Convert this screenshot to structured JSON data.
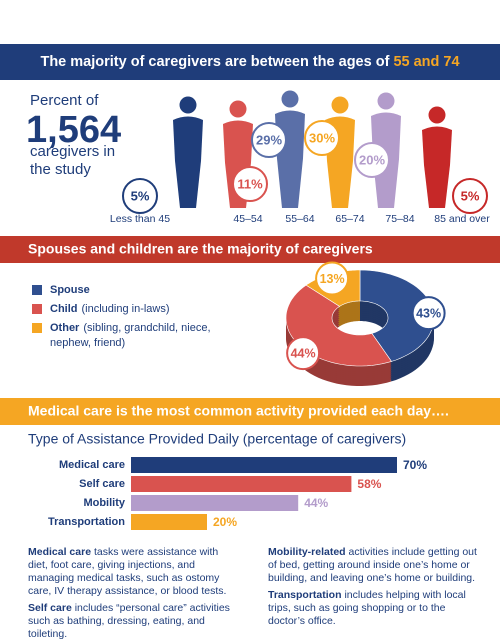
{
  "age_section": {
    "title_prefix": "The majority of caregivers are between the ages of",
    "title_highlight": "55 and 74",
    "intro_top": "Percent of",
    "intro_count": "1,564",
    "intro_bottom": "caregivers in the study"
  },
  "relationship_section": {
    "title": "Spouses and children are the majority of caregivers"
  },
  "activity_section": {
    "title": "Medical care is the most common activity provided each day….",
    "notes": [
      {
        "lead": "Medical care",
        "text": "tasks were assistance with diet, foot care, giving injections, and managing medical tasks, such as ostomy care, IV therapy assistance, or blood tests."
      },
      {
        "lead": "Self care",
        "text": "includes “personal care” activities such as bathing, dressing, eating, and toileting."
      },
      {
        "lead": "Mobility-related",
        "text": "activities include getting out of bed, getting around inside one’s home or building, and leaving one’s home or building."
      },
      {
        "lead": "Transportation",
        "text": "includes helping with local trips, such as going shopping or to the doctor’s office."
      }
    ]
  },
  "chart_data": [
    {
      "type": "pictogram",
      "categories": [
        "Less than 45",
        "45–54",
        "55–64",
        "65–74",
        "75–84",
        "85 and over"
      ],
      "values": [
        5,
        11,
        29,
        30,
        20,
        5
      ],
      "value_labels": [
        "5%",
        "11%",
        "29%",
        "30%",
        "20%",
        "5%"
      ],
      "colors": [
        "#1f3d7a",
        "#d9534f",
        "#5a6fa8",
        "#f5a623",
        "#b39ccb",
        "#c62828"
      ]
    },
    {
      "type": "pie",
      "donut": true,
      "categories": [
        "Spouse",
        "Child",
        "Other"
      ],
      "legend_notes": [
        null,
        "(including in-laws)",
        "(sibling, grandchild, niece, nephew, friend)"
      ],
      "values": [
        43,
        44,
        13
      ],
      "value_labels": [
        "43%",
        "44%",
        "13%"
      ],
      "colors": [
        "#2f4f8f",
        "#d9534f",
        "#f5a623"
      ]
    },
    {
      "type": "bar",
      "orientation": "horizontal",
      "title": "Type of Assistance Provided Daily (percentage of caregivers)",
      "categories": [
        "Medical care",
        "Self care",
        "Mobility",
        "Transportation"
      ],
      "values": [
        70,
        58,
        44,
        20
      ],
      "value_labels": [
        "70%",
        "58%",
        "44%",
        "20%"
      ],
      "colors": [
        "#1f3d7a",
        "#d9534f",
        "#b39ccb",
        "#f5a623"
      ]
    }
  ]
}
